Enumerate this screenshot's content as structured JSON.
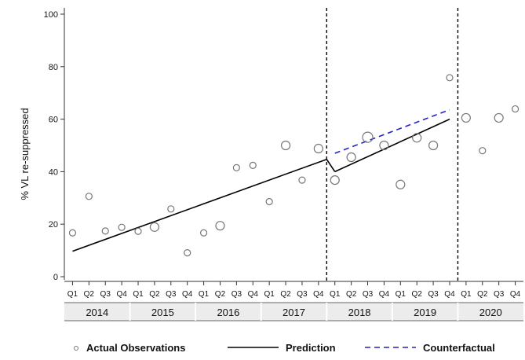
{
  "chart_data": {
    "type": "scatter",
    "title": "",
    "ylabel": "% VL re-suppressed",
    "xlabel": "",
    "ylim": [
      0,
      100
    ],
    "yticks": [
      0,
      20,
      40,
      60,
      80,
      100
    ],
    "quarters": [
      "Q1",
      "Q2",
      "Q3",
      "Q4",
      "Q1",
      "Q2",
      "Q3",
      "Q4",
      "Q1",
      "Q2",
      "Q3",
      "Q4",
      "Q1",
      "Q2",
      "Q3",
      "Q4",
      "Q1",
      "Q2",
      "Q3",
      "Q4",
      "Q1",
      "Q2",
      "Q3",
      "Q4",
      "Q1",
      "Q2",
      "Q3",
      "Q4"
    ],
    "years": [
      "2014",
      "2015",
      "2016",
      "2017",
      "2018",
      "2019",
      "2020"
    ],
    "interruptions_after_index": [
      16,
      24
    ],
    "colors": {
      "observation": "#777777",
      "prediction": "#000000",
      "counterfactual": "#2222cc"
    },
    "observations": [
      {
        "x": 0,
        "y": 16.7,
        "size": 1
      },
      {
        "x": 1,
        "y": 30.6,
        "size": 1
      },
      {
        "x": 2,
        "y": 17.4,
        "size": 1
      },
      {
        "x": 3,
        "y": 18.8,
        "size": 1
      },
      {
        "x": 4,
        "y": 17.3,
        "size": 1
      },
      {
        "x": 5,
        "y": 18.9,
        "size": 2
      },
      {
        "x": 6,
        "y": 25.8,
        "size": 1
      },
      {
        "x": 7,
        "y": 9.1,
        "size": 1
      },
      {
        "x": 8,
        "y": 16.7,
        "size": 1
      },
      {
        "x": 9,
        "y": 19.4,
        "size": 2
      },
      {
        "x": 10,
        "y": 41.5,
        "size": 1
      },
      {
        "x": 11,
        "y": 42.4,
        "size": 1
      },
      {
        "x": 12,
        "y": 28.6,
        "size": 1
      },
      {
        "x": 13,
        "y": 50.0,
        "size": 2
      },
      {
        "x": 14,
        "y": 36.8,
        "size": 1
      },
      {
        "x": 15,
        "y": 48.8,
        "size": 2
      },
      {
        "x": 16,
        "y": 36.8,
        "size": 2
      },
      {
        "x": 17,
        "y": 45.5,
        "size": 2
      },
      {
        "x": 18,
        "y": 53.1,
        "size": 3
      },
      {
        "x": 19,
        "y": 50.0,
        "size": 2
      },
      {
        "x": 20,
        "y": 35.1,
        "size": 2
      },
      {
        "x": 21,
        "y": 52.9,
        "size": 2
      },
      {
        "x": 22,
        "y": 50.0,
        "size": 2
      },
      {
        "x": 23,
        "y": 75.8,
        "size": 1
      },
      {
        "x": 24,
        "y": 60.5,
        "size": 2
      },
      {
        "x": 25,
        "y": 48.0,
        "size": 1
      },
      {
        "x": 26,
        "y": 60.5,
        "size": 2
      },
      {
        "x": 27,
        "y": 63.9,
        "size": 1
      }
    ],
    "prediction_segments": [
      [
        {
          "x": 0,
          "y": 9.7
        },
        {
          "x": 15.5,
          "y": 44.7
        }
      ],
      [
        {
          "x": 15.5,
          "y": 44.7
        },
        {
          "x": 16,
          "y": 40.0
        }
      ],
      [
        {
          "x": 16,
          "y": 40.0
        },
        {
          "x": 23,
          "y": 60.0
        }
      ]
    ],
    "counterfactual": [
      {
        "x": 16,
        "y": 47.0
      },
      {
        "x": 23,
        "y": 63.6
      }
    ],
    "legend": {
      "position": "bottom",
      "items": [
        {
          "label": "Actual Observations",
          "kind": "marker"
        },
        {
          "label": "Prediction",
          "kind": "solid"
        },
        {
          "label": "Counterfactual",
          "kind": "dashed"
        }
      ]
    }
  }
}
